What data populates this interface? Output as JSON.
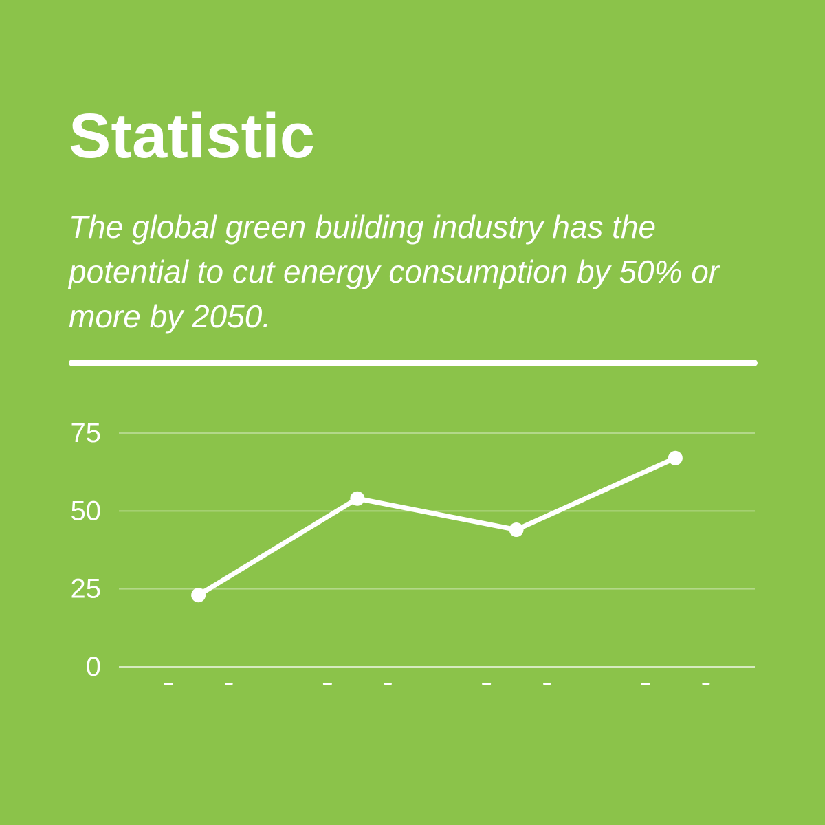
{
  "page": {
    "title": "Statistic",
    "subtitle": "The global green building industry has the potential to cut energy consumption by 50% or more by 2050.",
    "subtitle_lines": [
      "The global green building industry has the",
      "potential to cut energy consumption by 50% or",
      "more by 2050."
    ],
    "colors": {
      "background": "#8BC34A",
      "text": "#FFFFFF",
      "divider": "#FFFFFF",
      "gridline": "rgba(255,255,255,0.35)",
      "zero_line": "rgba(255,255,255,0.65)"
    }
  },
  "chart_data": {
    "type": "line",
    "categories": [
      "",
      "",
      "",
      ""
    ],
    "x_labels_clipped": true,
    "values": [
      23,
      54,
      44,
      67
    ],
    "ytick_labels": [
      "0",
      "25",
      "50",
      "75"
    ],
    "yticks": [
      0,
      25,
      50,
      75
    ],
    "ylim": [
      0,
      75
    ],
    "grid": true,
    "legend": false,
    "title": "",
    "xlabel": "",
    "ylabel": "",
    "line_color": "#FFFFFF",
    "point_color": "#FFFFFF"
  }
}
